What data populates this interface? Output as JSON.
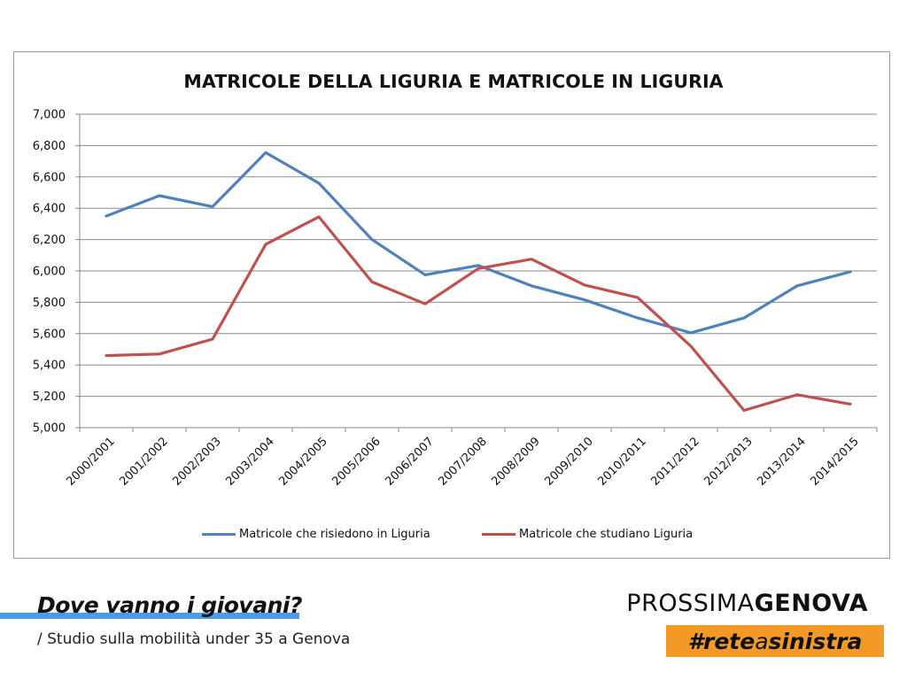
{
  "chart_data": {
    "type": "line",
    "title": "MATRICOLE DELLA LIGURIA E MATRICOLE IN LIGURIA",
    "xlabel": "",
    "ylabel": "",
    "ylim": [
      5000,
      7000
    ],
    "yticks": [
      "5,000",
      "5,200",
      "5,400",
      "5,600",
      "5,800",
      "6,000",
      "6,200",
      "6,400",
      "6,600",
      "6,800",
      "7,000"
    ],
    "ytick_values": [
      5000,
      5200,
      5400,
      5600,
      5800,
      6000,
      6200,
      6400,
      6600,
      6800,
      7000
    ],
    "categories": [
      "2000/2001",
      "2001/2002",
      "2002/2003",
      "2003/2004",
      "2004/2005",
      "2005/2006",
      "2006/2007",
      "2007/2008",
      "2008/2009",
      "2009/2010",
      "2010/2011",
      "2011/2012",
      "2012/2013",
      "2013/2014",
      "2014/2015"
    ],
    "grid": true,
    "legend_position": "bottom",
    "series": [
      {
        "name": "Matricole che risiedono in Liguria",
        "color": "#4f81bd",
        "values": [
          6350,
          6480,
          6410,
          6755,
          6560,
          6200,
          5975,
          6035,
          5905,
          5815,
          5700,
          5605,
          5700,
          5905,
          5995
        ]
      },
      {
        "name": "Matricole che studiano Liguria",
        "color": "#c0504d",
        "values": [
          5460,
          5470,
          5565,
          6170,
          6345,
          5930,
          5790,
          6015,
          6075,
          5910,
          5830,
          5520,
          5110,
          5210,
          5150
        ]
      }
    ]
  },
  "footer": {
    "title": "Dove vanno i giovani?",
    "subtitle": "/ Studio sulla mobilità under 35 a Genova",
    "accent_color": "#4c9be8"
  },
  "brand": {
    "light": "PROSSIMA",
    "bold": "GENOVA"
  },
  "hashtag": {
    "part1": "#rete",
    "part2": "a",
    "part3": "sinistra",
    "background_color": "#f39a26"
  }
}
